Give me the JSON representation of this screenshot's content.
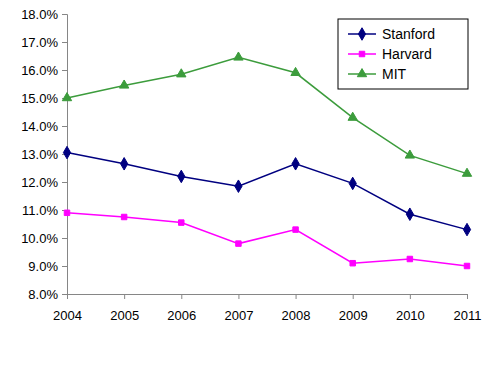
{
  "chart_data": {
    "type": "line",
    "x": [
      2004,
      2005,
      2006,
      2007,
      2008,
      2009,
      2010,
      2011
    ],
    "xlim": [
      2004,
      2011
    ],
    "xticks": [
      2004,
      2005,
      2006,
      2007,
      2008,
      2009,
      2010,
      2011
    ],
    "ylim": [
      8,
      18
    ],
    "yticks": [
      {
        "value": 8,
        "label": "8.0%"
      },
      {
        "value": 9,
        "label": "9.0%"
      },
      {
        "value": 10,
        "label": "10.0%"
      },
      {
        "value": 11,
        "label": "11.0%"
      },
      {
        "value": 12,
        "label": "12.0%"
      },
      {
        "value": 13,
        "label": "13.0%"
      },
      {
        "value": 14,
        "label": "14.0%"
      },
      {
        "value": 15,
        "label": "15.0%"
      },
      {
        "value": 16,
        "label": "16.0%"
      },
      {
        "value": 17,
        "label": "17.0%"
      },
      {
        "value": 18,
        "label": "18.0%"
      }
    ],
    "grid": false,
    "legend": "upper right",
    "series": [
      {
        "name": "Stanford",
        "color": "#000080",
        "marker": "diamond",
        "line_style": "solid",
        "values": [
          13.05,
          12.65,
          12.2,
          11.85,
          12.65,
          11.95,
          10.85,
          10.3
        ]
      },
      {
        "name": "Harvard",
        "color": "#ff00ff",
        "marker": "square",
        "line_style": "solid",
        "values": [
          10.9,
          10.75,
          10.55,
          9.8,
          10.3,
          9.1,
          9.25,
          9.0
        ]
      },
      {
        "name": "MIT",
        "color": "#3c9c3c",
        "marker": "triangle",
        "line_style": "solid",
        "values": [
          15.0,
          15.45,
          15.85,
          16.45,
          15.9,
          14.3,
          12.95,
          12.3
        ]
      }
    ]
  }
}
